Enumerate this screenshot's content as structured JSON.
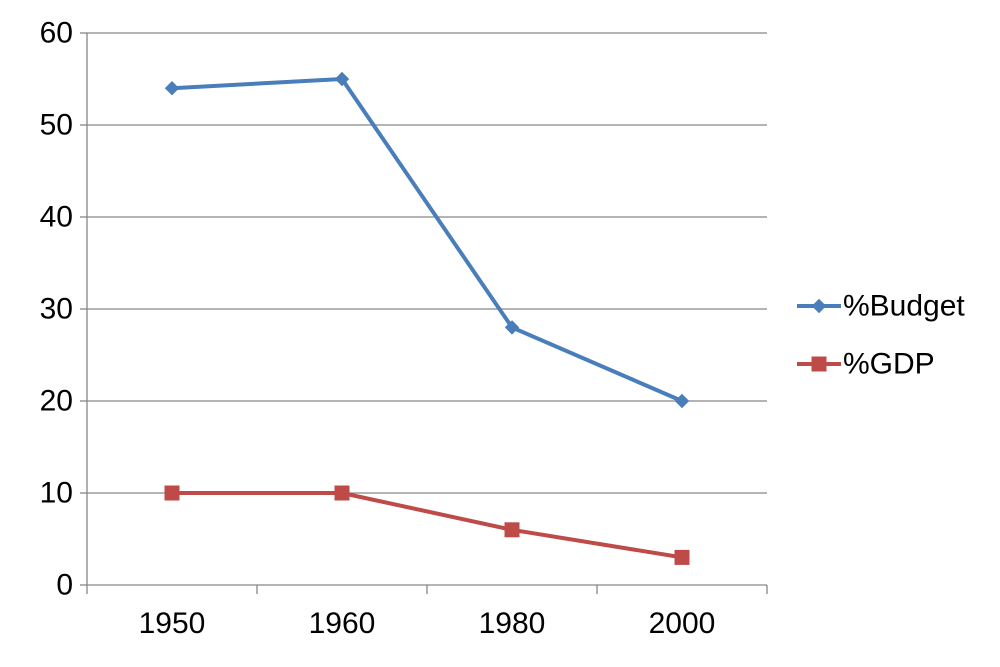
{
  "chart_data": {
    "type": "line",
    "categories": [
      "1950",
      "1960",
      "1980",
      "2000"
    ],
    "series": [
      {
        "name": "%Budget",
        "values": [
          54,
          55,
          28,
          20
        ],
        "color": "#4A7EBB",
        "marker": "diamond"
      },
      {
        "name": "%GDP",
        "values": [
          10,
          10,
          6,
          3
        ],
        "color": "#BE4B48",
        "marker": "square"
      }
    ],
    "ylim": [
      0,
      60
    ],
    "yticks": [
      0,
      10,
      20,
      30,
      40,
      50,
      60
    ],
    "grid": true,
    "legend": "right",
    "title": "",
    "xlabel": "",
    "ylabel": ""
  }
}
